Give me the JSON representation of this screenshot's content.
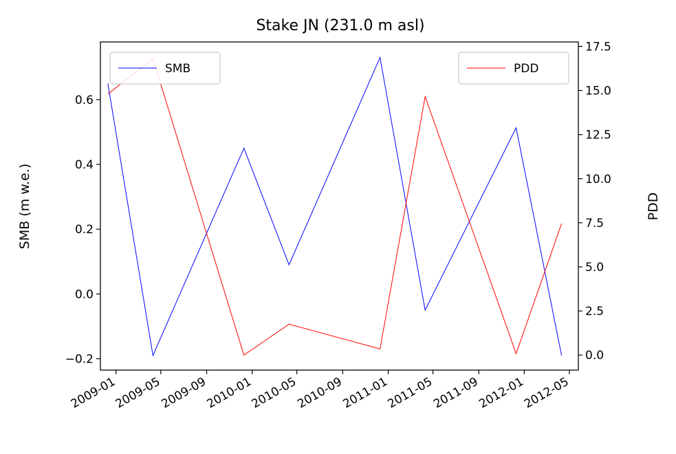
{
  "chart_data": {
    "type": "line",
    "title": "Stake JN (231.0 m asl)",
    "ylabel": "SMB (m w.e.)",
    "y2label": "PDD",
    "xlim": [
      "2008-11-20",
      "2012-05-25"
    ],
    "ylim": [
      -0.235,
      0.778
    ],
    "y2lim": [
      -0.85,
      17.75
    ],
    "xticks": [
      "2009-01",
      "2009-05",
      "2009-09",
      "2010-01",
      "2010-05",
      "2010-09",
      "2011-01",
      "2011-05",
      "2011-09",
      "2012-01",
      "2012-05"
    ],
    "yticks": [
      -0.2,
      0.0,
      0.2,
      0.4,
      0.6
    ],
    "ytick_labels": [
      "−0.2",
      "0.0",
      "0.2",
      "0.4",
      "0.6"
    ],
    "y2ticks": [
      0.0,
      2.5,
      5.0,
      7.5,
      10.0,
      12.5,
      15.0,
      17.5
    ],
    "y2tick_labels": [
      "0.0",
      "2.5",
      "5.0",
      "7.5",
      "10.0",
      "12.5",
      "15.0",
      "17.5"
    ],
    "series": [
      {
        "name": "SMB",
        "axis": "left",
        "color": "#0000ff",
        "legend_position": "upper left",
        "x": [
          "2008-12-10",
          "2009-04-10",
          "2009-12-10",
          "2010-04-10",
          "2010-12-10",
          "2011-04-10",
          "2011-12-10",
          "2012-04-10"
        ],
        "values": [
          0.65,
          -0.19,
          0.45,
          0.09,
          0.73,
          -0.05,
          0.513,
          -0.19
        ]
      },
      {
        "name": "PDD",
        "axis": "right",
        "color": "#ff0000",
        "legend_position": "upper right",
        "x": [
          "2008-12-10",
          "2009-04-10",
          "2009-12-10",
          "2010-04-10",
          "2010-12-10",
          "2011-04-10",
          "2011-12-10",
          "2012-04-10"
        ],
        "values": [
          14.8,
          16.8,
          0.0,
          1.75,
          0.35,
          14.65,
          0.08,
          7.45
        ]
      }
    ],
    "grid": false
  }
}
